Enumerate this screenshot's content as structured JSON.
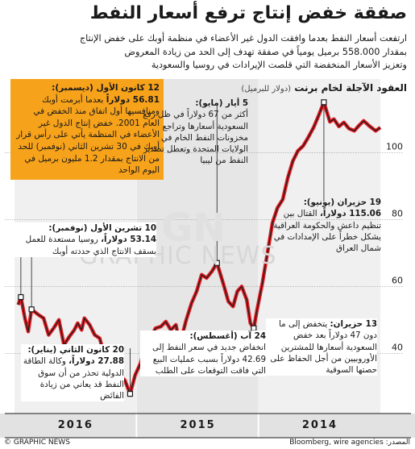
{
  "title": "صفقة خفض إنتاج ترفع أسعار النفط",
  "subtitle": [
    "ارتفعت أسعار النفط بعدما وافقت الدول غير الأعضاء في منظمة أوبك على خفض الإنتاج",
    "بمقدار 558.000 برميل يومياً في صفقة تهدف إلى الحد من زيادة المعروض",
    "وتعزيز الأسعار المنخفضة التي قلصت الإيرادات في روسيا والسعودية"
  ],
  "chart_heading": "العقود الآجلة لخام برنت",
  "chart_unit": "(دولار للبرميل)",
  "annotations": {
    "dec": {
      "date": "12 كانون الأول (ديسمبر):",
      "value": "56.81 دولاراً",
      "text": "بعدما أبرمت أوبك ومنافسيها أول اتفاق منذ الخفض في العام 2001. خفض إنتاج الدول غير الأعضاء في المنظمة يأتي على رأس قرار أوبك في 30 تشرين الثاني (نوفمبر) للحد من الانتاج بمقدار 1.2 مليون برميل في اليوم الواحد"
    },
    "nov": {
      "date": "10 تشرين الأول (نوفمبر):",
      "value": "53.14 دولاراً،",
      "text": "روسيا مستعدة للعمل بسقف الانتاج الذي حددته أوبك"
    },
    "may": {
      "date": "5 أيار (مايو):",
      "text": "أكثر من 67 دولاراً في ظل رفع السعودية أسعارها وتراجع مخزونات النفط الخام في الولايات المتحدة وتعطل تصدير النفط من ليبيا"
    },
    "jun": {
      "date": "19 حزيران (يونيو):",
      "value": "115.06 دولاراً،",
      "text": "القتال بين تنظيم داعش والحكومة العراقية يشكل خطراً على الإمدادات في شمال العراق"
    },
    "aug": {
      "date": "24 آب (أغسطس):",
      "text": "انخفاض جديد في سعر النفط إلى 42.69 دولاراً بسبب عمليات البيع التي فاقت التوقعات على الطلب"
    },
    "jan": {
      "date": "20 كانون الثاني (يناير):",
      "value": "27.88 دولاراً،",
      "text": "وكالة الطاقة الدولية تحذر من أن سوق النفط قد يعاني من زيادة الفائض"
    },
    "jun13": {
      "date": "13 حزيران:",
      "text": "يتخفض إلى ما دون 47 دولاراً بعد خفض السعودية أسعارها للمشترين الأوروبيين من أجل الحفاظ على حصتها السوقية"
    }
  },
  "footer_left": "© GRAPHIC NEWS",
  "footer_right": "المصدر: Bloomberg, wire agencies",
  "watermark": "GRAPHIC NEWS",
  "watermark_gn": "GN",
  "colors": {
    "line": "#1a1a1a",
    "red": "#e31e24",
    "accent": "#f7a21b",
    "band_dark": "#e6e6e6",
    "band_light": "#f0f0f0"
  },
  "chart_data": {
    "type": "line",
    "title": "العقود الآجلة لخام برنت",
    "ylabel": "(دولار للبرميل)",
    "x_direction": "right-to-left",
    "year_labels": [
      "2014",
      "2015",
      "2016"
    ],
    "yticks": [
      40,
      60,
      80,
      100
    ],
    "ylim": [
      22,
      122
    ],
    "series": [
      {
        "name": "Brent",
        "points": [
          [
            "2014-01-01",
            107.5
          ],
          [
            "2014-01-15",
            106.5
          ],
          [
            "2014-02-01",
            107.8
          ],
          [
            "2014-02-20",
            109.5
          ],
          [
            "2014-03-05",
            108.2
          ],
          [
            "2014-03-20",
            106.5
          ],
          [
            "2014-04-05",
            107.2
          ],
          [
            "2014-04-20",
            109.0
          ],
          [
            "2014-05-05",
            107.8
          ],
          [
            "2014-05-20",
            110.0
          ],
          [
            "2014-06-01",
            109.2
          ],
          [
            "2014-06-19",
            115.06
          ],
          [
            "2014-07-05",
            111.0
          ],
          [
            "2014-07-20",
            107.5
          ],
          [
            "2014-08-05",
            104.5
          ],
          [
            "2014-08-20",
            102.0
          ],
          [
            "2014-09-05",
            100.5
          ],
          [
            "2014-09-20",
            97.5
          ],
          [
            "2014-10-05",
            92.5
          ],
          [
            "2014-10-20",
            86.0
          ],
          [
            "2014-11-05",
            83.5
          ],
          [
            "2014-11-20",
            79.0
          ],
          [
            "2014-12-05",
            70.0
          ],
          [
            "2014-12-20",
            61.0
          ],
          [
            "2015-01-05",
            53.0
          ],
          [
            "2015-01-15",
            47.5
          ],
          [
            "2015-01-25",
            49.0
          ],
          [
            "2015-02-05",
            56.0
          ],
          [
            "2015-02-20",
            60.0
          ],
          [
            "2015-03-05",
            58.5
          ],
          [
            "2015-03-18",
            54.0
          ],
          [
            "2015-04-01",
            55.5
          ],
          [
            "2015-04-15",
            60.5
          ],
          [
            "2015-05-05",
            67.0
          ],
          [
            "2015-05-20",
            64.5
          ],
          [
            "2015-06-05",
            62.5
          ],
          [
            "2015-06-20",
            63.5
          ],
          [
            "2015-07-05",
            58.5
          ],
          [
            "2015-07-20",
            55.0
          ],
          [
            "2015-08-05",
            50.0
          ],
          [
            "2015-08-24",
            42.69
          ],
          [
            "2015-09-05",
            48.5
          ],
          [
            "2015-09-20",
            47.0
          ],
          [
            "2015-10-05",
            49.5
          ],
          [
            "2015-10-20",
            48.0
          ],
          [
            "2015-11-05",
            47.5
          ],
          [
            "2015-11-20",
            44.5
          ],
          [
            "2015-12-05",
            42.0
          ],
          [
            "2015-12-20",
            37.0
          ],
          [
            "2016-01-05",
            33.5
          ],
          [
            "2016-01-20",
            27.88
          ],
          [
            "2016-02-05",
            32.0
          ],
          [
            "2016-02-20",
            33.5
          ],
          [
            "2016-03-05",
            38.5
          ],
          [
            "2016-03-20",
            40.5
          ],
          [
            "2016-04-05",
            39.0
          ],
          [
            "2016-04-20",
            44.5
          ],
          [
            "2016-05-05",
            45.5
          ],
          [
            "2016-05-20",
            48.5
          ],
          [
            "2016-06-05",
            50.5
          ],
          [
            "2016-06-13",
            47.0
          ],
          [
            "2016-06-25",
            49.0
          ],
          [
            "2016-07-05",
            47.0
          ],
          [
            "2016-07-20",
            45.0
          ],
          [
            "2016-08-05",
            42.5
          ],
          [
            "2016-08-20",
            50.0
          ],
          [
            "2016-09-05",
            47.5
          ],
          [
            "2016-09-20",
            45.5
          ],
          [
            "2016-10-05",
            50.5
          ],
          [
            "2016-10-20",
            51.5
          ],
          [
            "2016-11-10",
            53.14
          ],
          [
            "2016-11-20",
            46.5
          ],
          [
            "2016-11-30",
            50.5
          ],
          [
            "2016-12-12",
            56.81
          ],
          [
            "2016-12-20",
            54.5
          ]
        ]
      }
    ],
    "markers": [
      {
        "date": "2014-06-19",
        "value": 115.06
      },
      {
        "date": "2015-05-05",
        "value": 67.0
      },
      {
        "date": "2015-01-15",
        "value": 47.5
      },
      {
        "date": "2015-08-24",
        "value": 42.69
      },
      {
        "date": "2016-01-20",
        "value": 27.88
      },
      {
        "date": "2016-11-10",
        "value": 53.14
      },
      {
        "date": "2016-12-12",
        "value": 56.81
      }
    ]
  }
}
